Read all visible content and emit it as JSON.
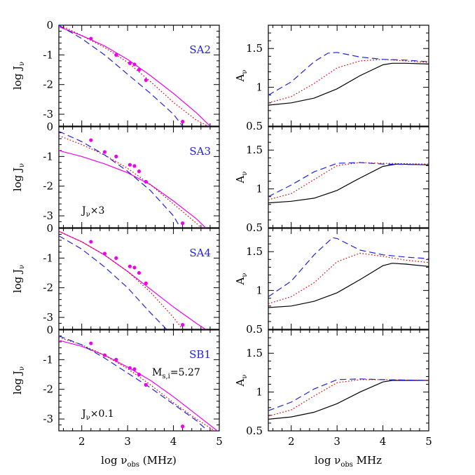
{
  "figure": {
    "left_xlabel": {
      "main": "log ν",
      "sub": "obs",
      "tail": " (MHz)"
    },
    "right_xlabel": {
      "main": "log ν",
      "sub": "obs",
      "tail": " MHz"
    },
    "left_ylabel": {
      "main": "log J",
      "sub": "ν"
    },
    "right_ylabel": {
      "main": "A",
      "sub": "ν"
    },
    "colors": {
      "solid": "#000000",
      "dotted": "#dd0000",
      "dashed": "#2222dd",
      "model": "#ee00ee",
      "data": "#ee00ee",
      "label": "#2222dd"
    }
  },
  "chart_data": [
    {
      "type": "line",
      "panel": "SA2",
      "column": "left",
      "row": 0,
      "title": "SA2",
      "xlim": [
        1.5,
        5
      ],
      "ylim": [
        -3.4,
        0
      ],
      "xticks": [
        "2",
        "3",
        "4",
        "5"
      ],
      "yticks": [
        "0",
        "-1",
        "-2",
        "-3"
      ],
      "annotations": [],
      "series": [
        {
          "name": "model",
          "style": "solid",
          "color": "#ee00ee",
          "x": [
            1.5,
            2.0,
            2.5,
            3.0,
            3.5,
            4.0,
            4.5,
            4.8
          ],
          "y": [
            -0.05,
            -0.35,
            -0.7,
            -1.15,
            -1.7,
            -2.3,
            -2.95,
            -3.4
          ]
        },
        {
          "name": "dotted",
          "style": "dotted",
          "color": "#dd0000",
          "x": [
            1.6,
            2.0,
            2.5,
            3.0,
            3.5,
            4.0,
            4.5,
            4.75
          ],
          "y": [
            -0.05,
            -0.35,
            -0.75,
            -1.25,
            -1.9,
            -2.6,
            -3.2,
            -3.4
          ]
        },
        {
          "name": "dashed",
          "style": "dashed",
          "color": "#2222dd",
          "x": [
            1.5,
            2.0,
            2.5,
            3.0,
            3.5,
            4.0,
            4.2
          ],
          "y": [
            0.0,
            -0.45,
            -1.0,
            -1.65,
            -2.3,
            -3.0,
            -3.4
          ]
        },
        {
          "name": "data",
          "style": "points",
          "color": "#ee00ee",
          "x": [
            2.2,
            2.75,
            3.05,
            3.15,
            3.25,
            3.4,
            4.2
          ],
          "y": [
            -0.45,
            -1.0,
            -1.28,
            -1.32,
            -1.5,
            -1.85,
            -3.25
          ]
        }
      ]
    },
    {
      "type": "line",
      "panel": "SA3",
      "column": "left",
      "row": 1,
      "title": "SA3",
      "xlim": [
        1.5,
        5
      ],
      "ylim": [
        -3.4,
        0
      ],
      "xticks": [
        "2",
        "3",
        "4",
        "5"
      ],
      "yticks": [
        "0",
        "-1",
        "-2",
        "-3"
      ],
      "annotations": [
        "J_ν×3"
      ],
      "series": [
        {
          "name": "model",
          "style": "solid",
          "color": "#ee00ee",
          "x": [
            1.5,
            2.0,
            2.5,
            3.0,
            3.5,
            4.0,
            4.5,
            4.7
          ],
          "y": [
            -0.8,
            -1.0,
            -1.25,
            -1.55,
            -1.95,
            -2.5,
            -3.1,
            -3.4
          ]
        },
        {
          "name": "dotted",
          "style": "dotted",
          "color": "#dd0000",
          "x": [
            1.5,
            2.0,
            2.5,
            3.0,
            3.5,
            4.0,
            4.5,
            4.6
          ],
          "y": [
            -0.3,
            -0.6,
            -0.95,
            -1.4,
            -1.95,
            -2.6,
            -3.25,
            -3.4
          ]
        },
        {
          "name": "dashed",
          "style": "dashed",
          "color": "#2222dd",
          "x": [
            1.5,
            2.0,
            2.5,
            3.0,
            3.5,
            4.0,
            4.15
          ],
          "y": [
            -0.15,
            -0.5,
            -0.95,
            -1.5,
            -2.15,
            -3.0,
            -3.4
          ]
        },
        {
          "name": "data",
          "style": "points",
          "color": "#ee00ee",
          "x": [
            2.2,
            2.5,
            2.75,
            3.05,
            3.15,
            3.25,
            3.4,
            4.2
          ],
          "y": [
            -0.45,
            -0.85,
            -1.0,
            -1.28,
            -1.32,
            -1.5,
            -1.85,
            -3.25
          ]
        }
      ]
    },
    {
      "type": "line",
      "panel": "SA4",
      "column": "left",
      "row": 2,
      "title": "SA4",
      "xlim": [
        1.5,
        5
      ],
      "ylim": [
        -3.4,
        0
      ],
      "xticks": [
        "2",
        "3",
        "4",
        "5"
      ],
      "yticks": [
        "0",
        "-1",
        "-2",
        "-3"
      ],
      "annotations": [],
      "series": [
        {
          "name": "model",
          "style": "solid",
          "color": "#ee00ee",
          "x": [
            1.5,
            2.0,
            2.5,
            3.0,
            3.5,
            4.0,
            4.5,
            4.7
          ],
          "y": [
            -0.1,
            -0.45,
            -0.9,
            -1.45,
            -2.05,
            -2.65,
            -3.2,
            -3.4
          ]
        },
        {
          "name": "dotted",
          "style": "dotted",
          "color": "#dd0000",
          "x": [
            1.5,
            2.0,
            2.5,
            3.0,
            3.5,
            4.0,
            4.2
          ],
          "y": [
            -0.1,
            -0.45,
            -0.9,
            -1.45,
            -2.15,
            -3.0,
            -3.4
          ]
        },
        {
          "name": "dashed",
          "style": "dashed",
          "color": "#2222dd",
          "x": [
            1.5,
            2.0,
            2.5,
            3.0,
            3.5,
            3.85
          ],
          "y": [
            -0.25,
            -0.7,
            -1.3,
            -2.0,
            -2.85,
            -3.4
          ]
        },
        {
          "name": "data",
          "style": "points",
          "color": "#ee00ee",
          "x": [
            2.2,
            2.5,
            2.75,
            3.05,
            3.15,
            3.25,
            3.4,
            4.2
          ],
          "y": [
            -0.45,
            -0.85,
            -1.0,
            -1.28,
            -1.32,
            -1.5,
            -1.85,
            -3.25
          ]
        }
      ]
    },
    {
      "type": "line",
      "panel": "SB1",
      "column": "left",
      "row": 3,
      "title": "SB1",
      "xlim": [
        1.5,
        5
      ],
      "ylim": [
        -3.4,
        0
      ],
      "xticks": [
        "2",
        "3",
        "4",
        "5"
      ],
      "yticks": [
        "0",
        "-1",
        "-2",
        "-3"
      ],
      "annotations": [
        "M_s,i=5.27",
        "J_ν×0.1"
      ],
      "series": [
        {
          "name": "model",
          "style": "solid",
          "color": "#ee00ee",
          "x": [
            1.5,
            2.0,
            2.5,
            3.0,
            3.5,
            4.0,
            4.5,
            5.0
          ],
          "y": [
            -0.35,
            -0.55,
            -0.85,
            -1.25,
            -1.7,
            -2.25,
            -2.85,
            -3.45
          ]
        },
        {
          "name": "dotted",
          "style": "dotted",
          "color": "#dd0000",
          "x": [
            1.5,
            2.0,
            2.5,
            3.0,
            3.5,
            4.0,
            4.5,
            4.9
          ],
          "y": [
            -0.25,
            -0.5,
            -0.85,
            -1.3,
            -1.85,
            -2.45,
            -3.0,
            -3.4
          ]
        },
        {
          "name": "dashed",
          "style": "dashed",
          "color": "#2222dd",
          "x": [
            1.5,
            2.0,
            2.5,
            3.0,
            3.5,
            4.0,
            4.5,
            4.75
          ],
          "y": [
            -0.2,
            -0.5,
            -0.95,
            -1.45,
            -1.95,
            -2.5,
            -3.05,
            -3.4
          ]
        },
        {
          "name": "data",
          "style": "points",
          "color": "#ee00ee",
          "x": [
            2.2,
            2.5,
            2.75,
            3.05,
            3.15,
            3.25,
            3.4,
            4.2
          ],
          "y": [
            -0.45,
            -0.85,
            -1.0,
            -1.28,
            -1.32,
            -1.5,
            -1.85,
            -3.25
          ]
        }
      ]
    },
    {
      "type": "line",
      "panel": "A-SA2",
      "column": "right",
      "row": 0,
      "title": "",
      "xlim": [
        1.5,
        5
      ],
      "ylim": [
        0.5,
        1.8
      ],
      "xticks": [
        "2",
        "3",
        "4",
        "5"
      ],
      "yticks": [
        "0.5",
        "1",
        "1.5"
      ],
      "annotations": [],
      "series": [
        {
          "name": "solid",
          "style": "solid",
          "color": "#000000",
          "x": [
            1.5,
            2.0,
            2.5,
            3.0,
            3.5,
            4.0,
            4.2,
            4.5,
            5.0
          ],
          "y": [
            0.77,
            0.8,
            0.86,
            0.98,
            1.15,
            1.29,
            1.31,
            1.31,
            1.3
          ]
        },
        {
          "name": "dotted",
          "style": "dotted",
          "color": "#dd0000",
          "x": [
            1.5,
            2.0,
            2.5,
            3.0,
            3.5,
            4.0,
            4.5,
            5.0
          ],
          "y": [
            0.8,
            0.88,
            1.05,
            1.25,
            1.34,
            1.36,
            1.34,
            1.32
          ]
        },
        {
          "name": "dashed",
          "style": "dashed",
          "color": "#2222dd",
          "x": [
            1.5,
            2.0,
            2.5,
            2.8,
            3.0,
            3.5,
            4.0,
            4.5,
            5.0
          ],
          "y": [
            0.9,
            1.07,
            1.33,
            1.44,
            1.45,
            1.39,
            1.36,
            1.35,
            1.33
          ]
        }
      ]
    },
    {
      "type": "line",
      "panel": "A-SA3",
      "column": "right",
      "row": 1,
      "title": "",
      "xlim": [
        1.5,
        5
      ],
      "ylim": [
        0.5,
        1.8
      ],
      "xticks": [
        "2",
        "3",
        "4",
        "5"
      ],
      "yticks": [
        "0.5",
        "1",
        "1.5"
      ],
      "annotations": [],
      "series": [
        {
          "name": "solid",
          "style": "solid",
          "color": "#000000",
          "x": [
            1.5,
            2.0,
            2.5,
            3.0,
            3.5,
            4.0,
            4.3,
            5.0
          ],
          "y": [
            0.82,
            0.84,
            0.88,
            0.98,
            1.14,
            1.29,
            1.32,
            1.31
          ]
        },
        {
          "name": "dotted",
          "style": "dotted",
          "color": "#dd0000",
          "x": [
            1.5,
            2.0,
            2.5,
            3.0,
            3.5,
            4.0,
            5.0
          ],
          "y": [
            0.86,
            0.94,
            1.12,
            1.3,
            1.34,
            1.33,
            1.32
          ]
        },
        {
          "name": "dashed",
          "style": "dashed",
          "color": "#2222dd",
          "x": [
            1.5,
            2.0,
            2.5,
            3.0,
            3.5,
            4.0,
            5.0
          ],
          "y": [
            0.9,
            1.05,
            1.22,
            1.33,
            1.34,
            1.32,
            1.31
          ]
        }
      ]
    },
    {
      "type": "line",
      "panel": "A-SA4",
      "column": "right",
      "row": 2,
      "title": "",
      "xlim": [
        1.5,
        5
      ],
      "ylim": [
        0.5,
        1.8
      ],
      "xticks": [
        "2",
        "3",
        "4",
        "5"
      ],
      "yticks": [
        "0.5",
        "1",
        "1.5"
      ],
      "annotations": [],
      "series": [
        {
          "name": "solid",
          "style": "solid",
          "color": "#000000",
          "x": [
            1.5,
            2.0,
            2.5,
            3.0,
            3.5,
            4.0,
            4.2,
            4.5,
            5.0
          ],
          "y": [
            0.78,
            0.8,
            0.86,
            0.97,
            1.14,
            1.32,
            1.35,
            1.34,
            1.31
          ]
        },
        {
          "name": "dotted",
          "style": "dotted",
          "color": "#dd0000",
          "x": [
            1.5,
            2.0,
            2.5,
            3.0,
            3.5,
            4.0,
            4.5,
            5.0
          ],
          "y": [
            0.83,
            0.92,
            1.1,
            1.37,
            1.48,
            1.44,
            1.39,
            1.36
          ]
        },
        {
          "name": "dashed",
          "style": "dashed",
          "color": "#2222dd",
          "x": [
            1.5,
            2.0,
            2.5,
            2.9,
            3.0,
            3.5,
            4.0,
            4.5,
            5.0
          ],
          "y": [
            0.92,
            1.12,
            1.46,
            1.68,
            1.67,
            1.52,
            1.46,
            1.43,
            1.41
          ]
        }
      ]
    },
    {
      "type": "line",
      "panel": "A-SB1",
      "column": "right",
      "row": 3,
      "title": "",
      "xlim": [
        1.5,
        5
      ],
      "ylim": [
        0.5,
        1.8
      ],
      "xticks": [
        "2",
        "3",
        "4",
        "5"
      ],
      "yticks": [
        "0.5",
        "1",
        "1.5"
      ],
      "annotations": [],
      "series": [
        {
          "name": "solid",
          "style": "solid",
          "color": "#000000",
          "x": [
            1.5,
            2.0,
            2.5,
            3.0,
            3.5,
            4.0,
            4.2,
            5.0
          ],
          "y": [
            0.65,
            0.68,
            0.74,
            0.85,
            1.0,
            1.13,
            1.15,
            1.15
          ]
        },
        {
          "name": "dotted",
          "style": "dotted",
          "color": "#dd0000",
          "x": [
            1.5,
            2.0,
            2.5,
            3.0,
            3.5,
            4.0,
            5.0
          ],
          "y": [
            0.69,
            0.77,
            0.95,
            1.12,
            1.16,
            1.16,
            1.15
          ]
        },
        {
          "name": "dashed",
          "style": "dashed",
          "color": "#2222dd",
          "x": [
            1.5,
            2.0,
            2.5,
            3.0,
            3.5,
            4.0,
            5.0
          ],
          "y": [
            0.76,
            0.87,
            1.04,
            1.16,
            1.17,
            1.16,
            1.15
          ]
        }
      ]
    }
  ]
}
